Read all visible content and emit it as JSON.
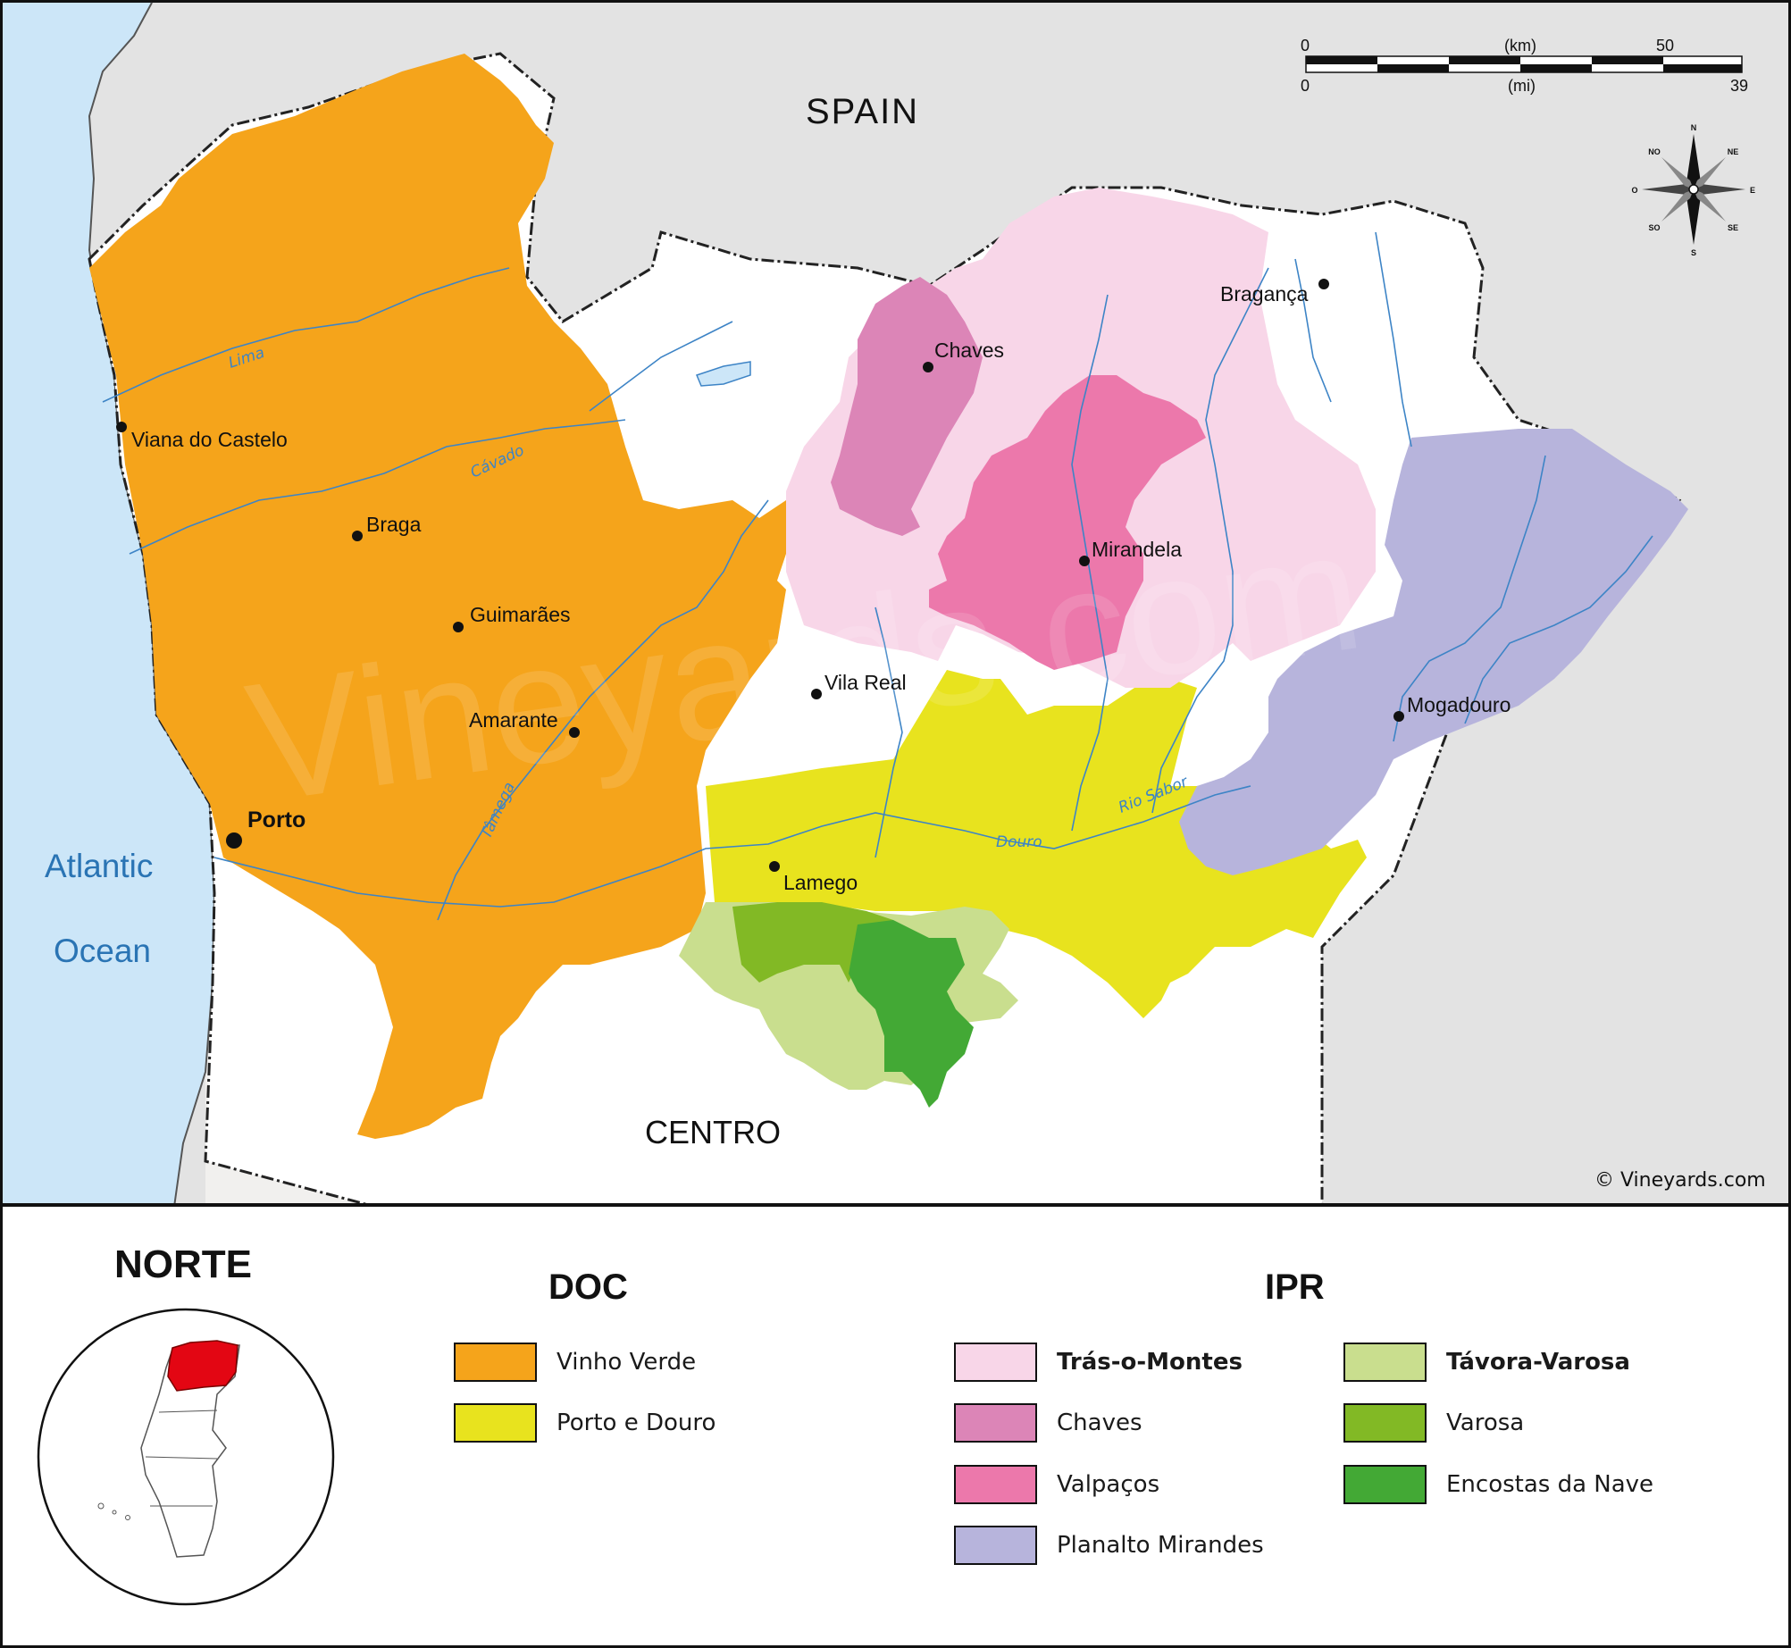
{
  "map": {
    "country_labels": {
      "spain": "SPAIN",
      "centro": "CENTRO"
    },
    "ocean_label": {
      "line1": "Atlantic",
      "line2": "Ocean"
    },
    "copyright": "© Vineyards.com",
    "watermark": "Vineyards.com",
    "scale_bar": {
      "km_start": "0",
      "km_unit": "(km)",
      "km_end": "50",
      "mi_start": "0",
      "mi_unit": "(mi)",
      "mi_end": "39"
    },
    "compass": {
      "n": "N",
      "ne": "NE",
      "e": "E",
      "se": "SE",
      "s": "S",
      "so": "SO",
      "o": "O",
      "no": "NO"
    },
    "cities": [
      {
        "name": "Viana do Castelo"
      },
      {
        "name": "Braga"
      },
      {
        "name": "Guimarães"
      },
      {
        "name": "Amarante"
      },
      {
        "name": "Porto"
      },
      {
        "name": "Chaves"
      },
      {
        "name": "Bragança"
      },
      {
        "name": "Mirandela"
      },
      {
        "name": "Vila Real"
      },
      {
        "name": "Mogadouro"
      },
      {
        "name": "Lamego"
      }
    ],
    "rivers": [
      {
        "name": "Lima"
      },
      {
        "name": "Cávado"
      },
      {
        "name": "Tâmega"
      },
      {
        "name": "Douro"
      },
      {
        "name": "Rio Sabor"
      }
    ],
    "colors": {
      "ocean": "#cce6f8",
      "spain": "#e3e3e3",
      "centro": "#f1f0ee",
      "vinho_verde": "#f5a41b",
      "porto_douro": "#e8e31e",
      "tras_os_montes": "#f8d6e8",
      "chaves": "#dc85b7",
      "valpacos": "#ec78ab",
      "planalto_mirandes": "#b7b4dc",
      "tavora_varosa": "#c9de8e",
      "varosa": "#82b925",
      "encostas_da_nave": "#43a935",
      "river": "#3d84c6",
      "inset_highlight": "#e30613"
    }
  },
  "legend": {
    "region_title": "NORTE",
    "doc_heading": "DOC",
    "ipr_heading": "IPR",
    "doc_items": [
      {
        "label": "Vinho Verde",
        "color": "#f5a41b"
      },
      {
        "label": "Porto e Douro",
        "color": "#e8e31e"
      }
    ],
    "ipr_items": [
      {
        "label": "Trás-o-Montes",
        "color": "#f8d6e8"
      },
      {
        "label": "Chaves",
        "color": "#dc85b7"
      },
      {
        "label": "Valpaços",
        "color": "#ec78ab"
      },
      {
        "label": "Planalto Mirandes",
        "color": "#b7b4dc"
      },
      {
        "label": "Távora-Varosa",
        "color": "#c9de8e"
      },
      {
        "label": "Varosa",
        "color": "#82b925"
      },
      {
        "label": "Encostas da Nave",
        "color": "#43a935"
      }
    ]
  }
}
